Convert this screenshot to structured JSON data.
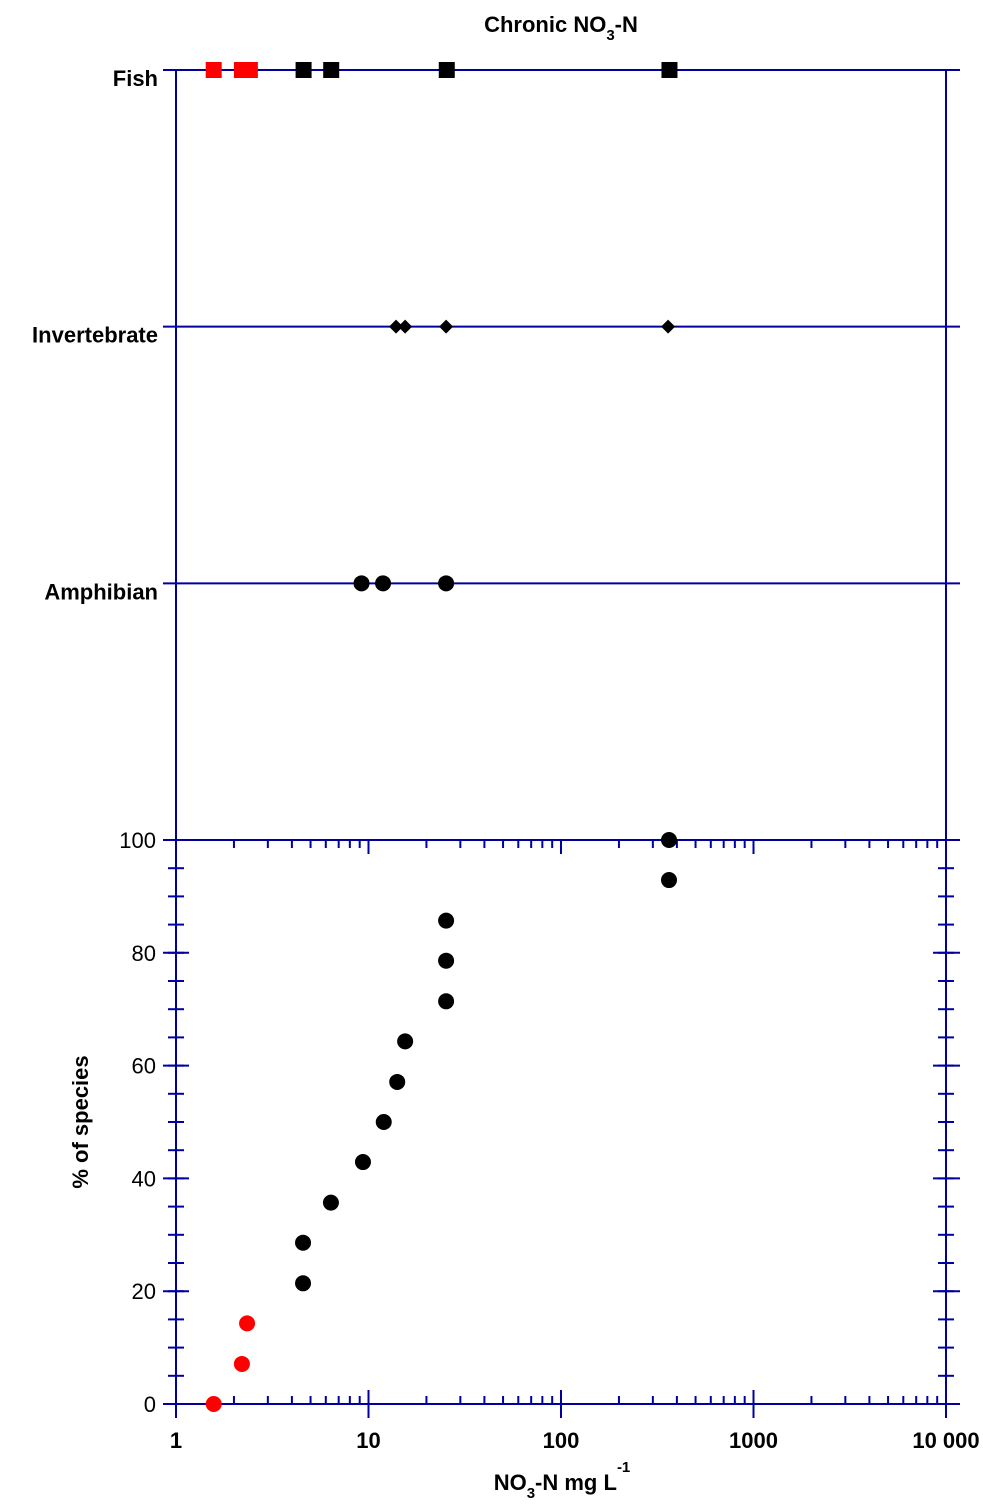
{
  "chart_data": [
    {
      "type": "strip",
      "title_parts": [
        {
          "text": "Chronic NO"
        },
        {
          "text": "3",
          "shift": "sub"
        },
        {
          "text": "-N"
        }
      ],
      "xlim": [
        1,
        10000
      ],
      "xscale": "log",
      "axis_color": "#0000a0",
      "categories": [
        {
          "label": "Fish",
          "marker": "square",
          "points": [
            {
              "x": 1.57,
              "color": "#ff0000"
            },
            {
              "x": 2.2,
              "color": "#ff0000"
            },
            {
              "x": 2.42,
              "color": "#ff0000"
            },
            {
              "x": 4.6,
              "color": "#000000"
            },
            {
              "x": 6.4,
              "color": "#000000"
            },
            {
              "x": 25.5,
              "color": "#000000"
            },
            {
              "x": 366,
              "color": "#000000"
            }
          ]
        },
        {
          "label": "Invertebrate",
          "marker": "diamond",
          "points": [
            {
              "x": 13.9,
              "color": "#000000"
            },
            {
              "x": 15.5,
              "color": "#000000"
            },
            {
              "x": 25.3,
              "color": "#000000"
            },
            {
              "x": 360,
              "color": "#000000"
            }
          ]
        },
        {
          "label": "Amphibian",
          "marker": "circle",
          "points": [
            {
              "x": 9.2,
              "color": "#000000"
            },
            {
              "x": 11.9,
              "color": "#000000"
            },
            {
              "x": 25.3,
              "color": "#000000"
            }
          ]
        }
      ]
    },
    {
      "type": "scatter",
      "xlim": [
        1,
        10000
      ],
      "xscale": "log",
      "minor_ticks": true,
      "xticks": [
        1,
        10,
        100,
        1000,
        {
          "value": 10000,
          "label": "10 000"
        }
      ],
      "ylim": [
        0,
        100
      ],
      "yticks": [
        0,
        20,
        40,
        60,
        80,
        100
      ],
      "y_minor_step": 5,
      "axis_color": "#0000a0",
      "y_label": "% of species",
      "x_label_parts": [
        {
          "text": "NO"
        },
        {
          "text": "3",
          "shift": "sub"
        },
        {
          "text": "-N mg L"
        },
        {
          "text": "-1",
          "shift": "super"
        }
      ],
      "series": [
        {
          "color": "#ff0000",
          "x": [
            1.57,
            2.2,
            2.34
          ],
          "values": [
            0,
            7.1,
            14.3
          ]
        },
        {
          "color": "#000000",
          "x": [
            4.57,
            4.57,
            6.38,
            9.36,
            12.0,
            14.1,
            15.5,
            25.3,
            25.3,
            25.3,
            364,
            364
          ],
          "values": [
            21.4,
            28.6,
            35.7,
            42.9,
            50.0,
            57.1,
            64.3,
            71.4,
            78.6,
            85.7,
            92.9,
            100
          ]
        }
      ]
    }
  ]
}
